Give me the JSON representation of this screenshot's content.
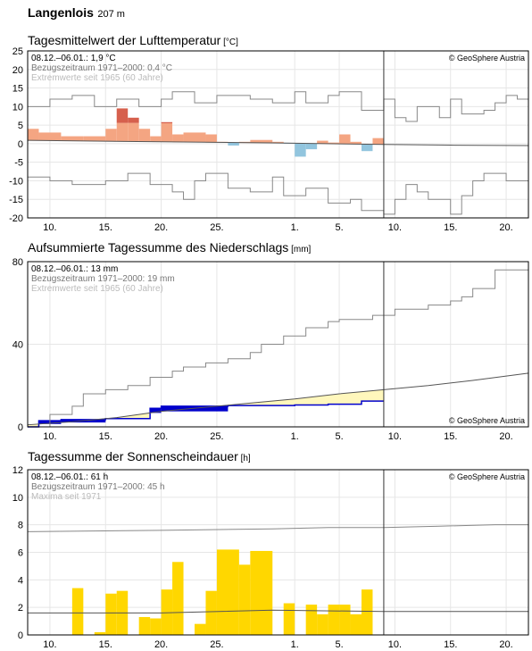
{
  "station": {
    "name": "Langenlois",
    "elevation": "207 m"
  },
  "x_ticks": [
    "10.",
    "15.",
    "20.",
    "25.",
    "1.",
    "5.",
    "10.",
    "15.",
    "20."
  ],
  "colors": {
    "temp_warm": "#f4a582",
    "temp_very_warm": "#d6604d",
    "temp_cold": "#92c5de",
    "precip_fill": "#fff7bc",
    "precip_bar": "#0000cc",
    "sun_bar": "#ffd700",
    "ref_line": "#555555",
    "extreme_line": "#888888"
  },
  "chart_data": [
    {
      "type": "bar",
      "title": "Tagesmittelwert der Lufttemperatur",
      "unit": "°C",
      "ylim": [
        -20,
        25
      ],
      "yticks": [
        -20,
        -15,
        -10,
        -5,
        0,
        5,
        10,
        15,
        20,
        25
      ],
      "x_day_range": [
        8,
        53
      ],
      "day_index_note": "",
      "info_lines": [
        "08.12.–06.01.: 1,9 °C",
        "Bezugszeitraum 1971–2000: 0,4 °C",
        "Extremwerte seit 1965 (60 Jahre)"
      ],
      "copyright": "© GeoSphere Austria",
      "anomaly_bars": [
        {
          "from": 8,
          "to": 9,
          "value": 4,
          "ref": 0.8
        },
        {
          "from": 9,
          "to": 11,
          "value": 3,
          "ref": 0.8
        },
        {
          "from": 11,
          "to": 13,
          "value": 2,
          "ref": 0.7
        },
        {
          "from": 13,
          "to": 15,
          "value": 2,
          "ref": 0.7
        },
        {
          "from": 15,
          "to": 16,
          "value": 4,
          "ref": 0.6
        },
        {
          "from": 16,
          "to": 17,
          "value": 9.5,
          "ref": 0.6
        },
        {
          "from": 17,
          "to": 18,
          "value": 7,
          "ref": 0.6
        },
        {
          "from": 18,
          "to": 19,
          "value": 4,
          "ref": 0.5
        },
        {
          "from": 19,
          "to": 20,
          "value": 2,
          "ref": 0.5
        },
        {
          "from": 20,
          "to": 21,
          "value": 5.8,
          "ref": 0.5
        },
        {
          "from": 21,
          "to": 22,
          "value": 2.5,
          "ref": 0.4
        },
        {
          "from": 22,
          "to": 24,
          "value": 3,
          "ref": 0.4
        },
        {
          "from": 24,
          "to": 25,
          "value": 2.5,
          "ref": 0.3
        },
        {
          "from": 25,
          "to": 26,
          "value": 0.5,
          "ref": 0.3
        },
        {
          "from": 26,
          "to": 27,
          "value": -0.5,
          "ref": 0.3
        },
        {
          "from": 27,
          "to": 28,
          "value": 0.5,
          "ref": 0.2
        },
        {
          "from": 28,
          "to": 30,
          "value": 1,
          "ref": 0.2
        },
        {
          "from": 30,
          "to": 31,
          "value": 0.5,
          "ref": 0.1
        },
        {
          "from": 31,
          "to": 32,
          "value": 0,
          "ref": 0.1
        },
        {
          "from": 32,
          "to": 33,
          "value": -3.5,
          "ref": 0.1
        },
        {
          "from": 33,
          "to": 34,
          "value": -1.5,
          "ref": 0.0
        },
        {
          "from": 34,
          "to": 35,
          "value": 0.8,
          "ref": 0.0
        },
        {
          "from": 35,
          "to": 36,
          "value": 0.3,
          "ref": 0.0
        },
        {
          "from": 36,
          "to": 37,
          "value": 2.5,
          "ref": -0.1
        },
        {
          "from": 37,
          "to": 38,
          "value": 0.5,
          "ref": -0.1
        },
        {
          "from": 38,
          "to": 39,
          "value": -2,
          "ref": -0.2
        },
        {
          "from": 39,
          "to": 40,
          "value": 1.5,
          "ref": -0.2
        }
      ],
      "ref_line": [
        [
          8,
          0.9
        ],
        [
          20,
          0.5
        ],
        [
          30,
          0.2
        ],
        [
          40,
          -0.2
        ],
        [
          46,
          -0.4
        ],
        [
          53,
          -0.5
        ]
      ],
      "extreme_max": [
        [
          8,
          10
        ],
        [
          10,
          10
        ],
        [
          10,
          12
        ],
        [
          12,
          12
        ],
        [
          12,
          13
        ],
        [
          14,
          13
        ],
        [
          14,
          10
        ],
        [
          16,
          10
        ],
        [
          16,
          12
        ],
        [
          18,
          12
        ],
        [
          18,
          10
        ],
        [
          20,
          10
        ],
        [
          20,
          12
        ],
        [
          21,
          12
        ],
        [
          21,
          14
        ],
        [
          23,
          14
        ],
        [
          23,
          11
        ],
        [
          25,
          11
        ],
        [
          25,
          13
        ],
        [
          28,
          13
        ],
        [
          28,
          12
        ],
        [
          30,
          12
        ],
        [
          30,
          11
        ],
        [
          32,
          11
        ],
        [
          32,
          14
        ],
        [
          33,
          14
        ],
        [
          33,
          11
        ],
        [
          35,
          11
        ],
        [
          35,
          13
        ],
        [
          36,
          13
        ],
        [
          36,
          14
        ],
        [
          38,
          14
        ],
        [
          38,
          9
        ],
        [
          40,
          9
        ],
        [
          40,
          12
        ],
        [
          41,
          12
        ],
        [
          41,
          7
        ],
        [
          42,
          7
        ],
        [
          42,
          6
        ],
        [
          43,
          6
        ],
        [
          43,
          10
        ],
        [
          45,
          10
        ],
        [
          45,
          7
        ],
        [
          46,
          7
        ],
        [
          46,
          12
        ],
        [
          47,
          12
        ],
        [
          47,
          8
        ],
        [
          49,
          8
        ],
        [
          49,
          9
        ],
        [
          50,
          9
        ],
        [
          50,
          11
        ],
        [
          51,
          11
        ],
        [
          51,
          13
        ],
        [
          52,
          13
        ],
        [
          52,
          12
        ],
        [
          53,
          12
        ]
      ],
      "extreme_min": [
        [
          8,
          -9
        ],
        [
          10,
          -9
        ],
        [
          10,
          -10
        ],
        [
          12,
          -10
        ],
        [
          12,
          -11
        ],
        [
          15,
          -11
        ],
        [
          15,
          -10
        ],
        [
          17,
          -10
        ],
        [
          17,
          -8
        ],
        [
          19,
          -8
        ],
        [
          19,
          -11
        ],
        [
          21,
          -11
        ],
        [
          21,
          -13
        ],
        [
          22,
          -13
        ],
        [
          22,
          -15
        ],
        [
          23,
          -15
        ],
        [
          23,
          -10
        ],
        [
          24,
          -10
        ],
        [
          24,
          -8
        ],
        [
          26,
          -8
        ],
        [
          26,
          -12
        ],
        [
          28,
          -12
        ],
        [
          28,
          -13
        ],
        [
          30,
          -13
        ],
        [
          30,
          -9
        ],
        [
          31,
          -9
        ],
        [
          31,
          -14
        ],
        [
          33,
          -14
        ],
        [
          33,
          -12
        ],
        [
          35,
          -12
        ],
        [
          35,
          -16
        ],
        [
          37,
          -16
        ],
        [
          37,
          -15
        ],
        [
          38,
          -15
        ],
        [
          38,
          -18
        ],
        [
          40,
          -18
        ],
        [
          40,
          -19
        ],
        [
          41,
          -19
        ],
        [
          41,
          -15
        ],
        [
          42,
          -15
        ],
        [
          42,
          -11
        ],
        [
          43,
          -11
        ],
        [
          43,
          -13
        ],
        [
          44,
          -13
        ],
        [
          44,
          -15
        ],
        [
          46,
          -15
        ],
        [
          46,
          -19
        ],
        [
          47,
          -19
        ],
        [
          47,
          -14
        ],
        [
          48,
          -14
        ],
        [
          48,
          -10
        ],
        [
          49,
          -10
        ],
        [
          49,
          -8
        ],
        [
          51,
          -8
        ],
        [
          51,
          -10
        ],
        [
          53,
          -10
        ]
      ]
    },
    {
      "type": "area",
      "title": "Aufsummierte Tagessumme des Niederschlags",
      "unit": "mm",
      "ylim": [
        0,
        80
      ],
      "yticks": [
        0,
        40,
        80
      ],
      "x_day_range": [
        8,
        53
      ],
      "info_lines": [
        "08.12.–06.01.: 13 mm",
        "Bezugszeitraum 1971–2000: 19 mm",
        "Extremwerte seit 1965 (60 Jahre)"
      ],
      "copyright": "© GeoSphere Austria",
      "actual": [
        [
          8,
          0
        ],
        [
          9,
          0
        ],
        [
          9,
          3
        ],
        [
          11,
          3
        ],
        [
          11,
          3.5
        ],
        [
          15,
          3.5
        ],
        [
          15,
          4
        ],
        [
          19,
          4
        ],
        [
          19,
          9
        ],
        [
          20,
          9
        ],
        [
          20,
          10
        ],
        [
          26,
          10
        ],
        [
          26,
          10.3
        ],
        [
          32,
          10.3
        ],
        [
          32,
          10.6
        ],
        [
          35,
          10.6
        ],
        [
          35,
          11
        ],
        [
          38,
          11
        ],
        [
          38,
          12.5
        ],
        [
          40,
          12.5
        ]
      ],
      "ref_line": [
        [
          8,
          1
        ],
        [
          12,
          2.5
        ],
        [
          16,
          4.5
        ],
        [
          20,
          7.5
        ],
        [
          24,
          9.5
        ],
        [
          28,
          11.5
        ],
        [
          32,
          13.5
        ],
        [
          36,
          16
        ],
        [
          40,
          18
        ],
        [
          44,
          20
        ],
        [
          48,
          22.5
        ],
        [
          53,
          26
        ]
      ],
      "extreme_max": [
        [
          8,
          0
        ],
        [
          10,
          0
        ],
        [
          10,
          6
        ],
        [
          12,
          6
        ],
        [
          12,
          10
        ],
        [
          13,
          10
        ],
        [
          13,
          16
        ],
        [
          15,
          16
        ],
        [
          15,
          18
        ],
        [
          17,
          18
        ],
        [
          17,
          20
        ],
        [
          19,
          20
        ],
        [
          19,
          24
        ],
        [
          21,
          24
        ],
        [
          21,
          27
        ],
        [
          22,
          27
        ],
        [
          22,
          29
        ],
        [
          24,
          29
        ],
        [
          24,
          31
        ],
        [
          26,
          31
        ],
        [
          26,
          33
        ],
        [
          28,
          33
        ],
        [
          28,
          36
        ],
        [
          29,
          36
        ],
        [
          29,
          40
        ],
        [
          31,
          40
        ],
        [
          31,
          44
        ],
        [
          33,
          44
        ],
        [
          33,
          48
        ],
        [
          35,
          48
        ],
        [
          35,
          51
        ],
        [
          36,
          51
        ],
        [
          36,
          52
        ],
        [
          39,
          52
        ],
        [
          39,
          54
        ],
        [
          41,
          54
        ],
        [
          41,
          57
        ],
        [
          44,
          57
        ],
        [
          44,
          59
        ],
        [
          46,
          59
        ],
        [
          46,
          61
        ],
        [
          47,
          61
        ],
        [
          47,
          63
        ],
        [
          48,
          63
        ],
        [
          48,
          67
        ],
        [
          50,
          67
        ],
        [
          50,
          76
        ],
        [
          53,
          76
        ]
      ]
    },
    {
      "type": "bar",
      "title": "Tagessumme der Sonnenscheindauer",
      "unit": "h",
      "ylim": [
        0,
        12
      ],
      "yticks": [
        0,
        2,
        4,
        6,
        8,
        10,
        12
      ],
      "x_day_range": [
        8,
        53
      ],
      "info_lines": [
        "08.12.–06.01.: 61 h",
        "Bezugszeitraum 1971–2000: 45 h",
        "Maxima seit 1971"
      ],
      "copyright": "© GeoSphere Austria",
      "bars": [
        {
          "from": 12,
          "to": 13,
          "value": 3.4
        },
        {
          "from": 14,
          "to": 15,
          "value": 0.2
        },
        {
          "from": 15,
          "to": 16,
          "value": 3.0
        },
        {
          "from": 16,
          "to": 17,
          "value": 3.2
        },
        {
          "from": 18,
          "to": 19,
          "value": 1.3
        },
        {
          "from": 19,
          "to": 20,
          "value": 1.2
        },
        {
          "from": 20,
          "to": 21,
          "value": 3.3
        },
        {
          "from": 21,
          "to": 22,
          "value": 5.3
        },
        {
          "from": 23,
          "to": 24,
          "value": 0.8
        },
        {
          "from": 24,
          "to": 25,
          "value": 3.2
        },
        {
          "from": 25,
          "to": 27,
          "value": 6.2
        },
        {
          "from": 27,
          "to": 28,
          "value": 5.1
        },
        {
          "from": 28,
          "to": 30,
          "value": 6.1
        },
        {
          "from": 31,
          "to": 32,
          "value": 2.3
        },
        {
          "from": 33,
          "to": 34,
          "value": 2.2
        },
        {
          "from": 34,
          "to": 35,
          "value": 1.5
        },
        {
          "from": 35,
          "to": 36,
          "value": 2.2
        },
        {
          "from": 36,
          "to": 37,
          "value": 2.2
        },
        {
          "from": 37,
          "to": 38,
          "value": 1.5
        },
        {
          "from": 38,
          "to": 39,
          "value": 3.3
        }
      ],
      "ref_line": [
        [
          8,
          1.6
        ],
        [
          20,
          1.6
        ],
        [
          30,
          1.8
        ],
        [
          40,
          1.7
        ],
        [
          53,
          1.7
        ]
      ],
      "extreme_max": [
        [
          8,
          7.5
        ],
        [
          20,
          7.6
        ],
        [
          30,
          7.7
        ],
        [
          35,
          7.8
        ],
        [
          40,
          7.8
        ],
        [
          45,
          7.9
        ],
        [
          50,
          8.0
        ],
        [
          53,
          8.0
        ]
      ]
    }
  ]
}
